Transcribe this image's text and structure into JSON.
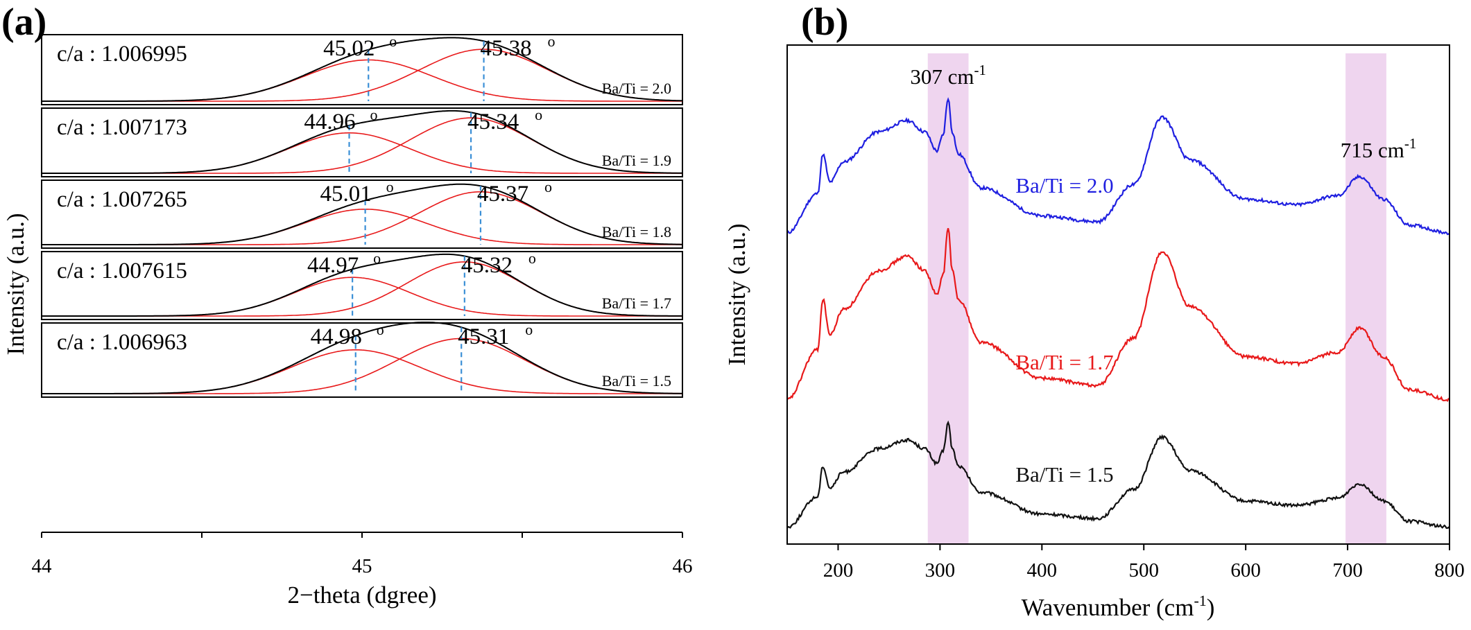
{
  "chart_data": [
    {
      "panel_label": "(a)",
      "type": "line",
      "subtype": "stacked-xrd-peak-fits",
      "xlabel": "2−theta (dgree)",
      "ylabel": "Intensity (a.u.)",
      "xlim": [
        44,
        46
      ],
      "xticks": [
        "44",
        "45",
        "46"
      ],
      "colors": {
        "total": "#000000",
        "component": "#e8191a",
        "marker": "#3a8fd6"
      },
      "subplots": [
        {
          "ca_label": "c/a : 1.006995",
          "ratio_label": "Ba/Ti = 2.0",
          "peak1_label": "45.02",
          "peak2_label": "45.38",
          "degree_symbol": "o",
          "peak1": 45.02,
          "peak2": 45.38,
          "amp1": 0.62,
          "amp2": 0.78,
          "sigma1": 0.2,
          "sigma2": 0.2
        },
        {
          "ca_label": "c/a : 1.007173",
          "ratio_label": "Ba/Ti = 1.9",
          "peak1_label": "44.96",
          "peak2_label": "45.34",
          "degree_symbol": "o",
          "peak1": 44.96,
          "peak2": 45.34,
          "amp1": 0.62,
          "amp2": 0.85,
          "sigma1": 0.19,
          "sigma2": 0.19
        },
        {
          "ca_label": "c/a : 1.007265",
          "ratio_label": "Ba/Ti = 1.8",
          "peak1_label": "45.01",
          "peak2_label": "45.37",
          "degree_symbol": "o",
          "peak1": 45.01,
          "peak2": 45.37,
          "amp1": 0.55,
          "amp2": 0.82,
          "sigma1": 0.19,
          "sigma2": 0.19
        },
        {
          "ca_label": "c/a : 1.007615",
          "ratio_label": "Ba/Ti = 1.7",
          "peak1_label": "44.97",
          "peak2_label": "45.32",
          "degree_symbol": "o",
          "peak1": 44.97,
          "peak2": 45.32,
          "amp1": 0.6,
          "amp2": 0.84,
          "sigma1": 0.18,
          "sigma2": 0.18
        },
        {
          "ca_label": "c/a : 1.006963",
          "ratio_label": "Ba/Ti = 1.5",
          "peak1_label": "44.98",
          "peak2_label": "45.31",
          "degree_symbol": "o",
          "peak1": 44.98,
          "peak2": 45.31,
          "amp1": 0.62,
          "amp2": 0.78,
          "sigma1": 0.2,
          "sigma2": 0.2
        }
      ]
    },
    {
      "panel_label": "(b)",
      "type": "line",
      "subtype": "stacked-raman-spectra",
      "xlabel": "Wavenumber (cm",
      "xlabel_sup": "-1",
      "xlabel_end": ")",
      "ylabel": "Intensity (a.u.)",
      "xlim": [
        150,
        800
      ],
      "xticks": [
        200,
        300,
        400,
        500,
        600,
        700,
        800
      ],
      "highlight_bands": [
        {
          "label": "307 cm",
          "sup": "-1",
          "range": [
            288,
            328
          ]
        },
        {
          "label": "715 cm",
          "sup": "-1",
          "range": [
            698,
            738
          ]
        }
      ],
      "band_color": "#efd5ef",
      "series": [
        {
          "name": "Ba/Ti = 2.0",
          "color": "#1f1fe0",
          "offset": 2.45,
          "scale": 0.9,
          "x": [
            150,
            180,
            185,
            192,
            205,
            240,
            268,
            285,
            297,
            303,
            308,
            312,
            318,
            340,
            400,
            455,
            490,
            518,
            545,
            600,
            650,
            690,
            712,
            735,
            760,
            800
          ],
          "y": [
            0.05,
            0.4,
            0.75,
            0.5,
            0.68,
            0.95,
            1.05,
            0.95,
            0.78,
            0.92,
            1.25,
            0.95,
            0.75,
            0.45,
            0.2,
            0.15,
            0.48,
            1.08,
            0.7,
            0.35,
            0.3,
            0.38,
            0.55,
            0.35,
            0.12,
            0.05
          ]
        },
        {
          "name": "Ba/Ti = 1.7",
          "color": "#e8191a",
          "offset": 1.1,
          "scale": 1.15,
          "x": [
            150,
            180,
            185,
            192,
            205,
            240,
            268,
            285,
            297,
            303,
            308,
            312,
            318,
            340,
            400,
            455,
            490,
            518,
            545,
            600,
            650,
            690,
            712,
            735,
            760,
            800
          ],
          "y": [
            0.05,
            0.4,
            0.75,
            0.5,
            0.68,
            0.95,
            1.05,
            0.95,
            0.78,
            0.92,
            1.25,
            0.95,
            0.75,
            0.45,
            0.2,
            0.15,
            0.48,
            1.08,
            0.7,
            0.35,
            0.3,
            0.38,
            0.55,
            0.35,
            0.12,
            0.05
          ]
        },
        {
          "name": "Ba/Ti = 1.5",
          "color": "#111111",
          "offset": 0.1,
          "scale": 0.7,
          "x": [
            150,
            180,
            185,
            192,
            205,
            240,
            268,
            285,
            297,
            303,
            308,
            312,
            318,
            340,
            400,
            455,
            490,
            518,
            545,
            600,
            650,
            690,
            712,
            735,
            760,
            800
          ],
          "y": [
            0.05,
            0.4,
            0.75,
            0.5,
            0.68,
            0.95,
            1.05,
            0.95,
            0.78,
            0.92,
            1.25,
            0.95,
            0.75,
            0.45,
            0.2,
            0.15,
            0.48,
            1.08,
            0.7,
            0.35,
            0.3,
            0.38,
            0.55,
            0.35,
            0.12,
            0.05
          ]
        }
      ],
      "ylim": [
        0,
        4
      ]
    }
  ]
}
